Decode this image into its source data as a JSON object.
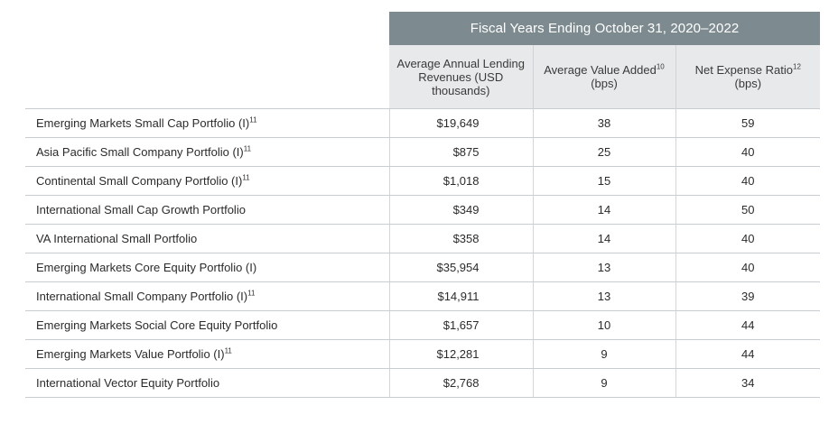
{
  "table": {
    "band_header": "Fiscal Years Ending October 31, 2020–2022",
    "columns": {
      "revenue": "Average Annual Lending Revenues (USD thousands)",
      "value_added": {
        "text": "Average Value Added",
        "sup": "10",
        "unit": " (bps)"
      },
      "expense": {
        "text": "Net Expense Ratio",
        "sup": "12",
        "unit": " (bps)"
      }
    },
    "rows": [
      {
        "name": "Emerging Markets Small Cap Portfolio (I)",
        "sup": "11",
        "revenue": "$19,649",
        "value_added": "38",
        "expense": "59"
      },
      {
        "name": "Asia Pacific Small Company Portfolio (I)",
        "sup": "11",
        "revenue": "$875",
        "value_added": "25",
        "expense": "40"
      },
      {
        "name": "Continental Small Company Portfolio (I)",
        "sup": "11",
        "revenue": "$1,018",
        "value_added": "15",
        "expense": "40"
      },
      {
        "name": "International Small Cap Growth Portfolio",
        "sup": "",
        "revenue": "$349",
        "value_added": "14",
        "expense": "50"
      },
      {
        "name": "VA International Small Portfolio",
        "sup": "",
        "revenue": "$358",
        "value_added": "14",
        "expense": "40"
      },
      {
        "name": "Emerging Markets Core Equity Portfolio (I)",
        "sup": "",
        "revenue": "$35,954",
        "value_added": "13",
        "expense": "40"
      },
      {
        "name": "International Small Company Portfolio (I)",
        "sup": "11",
        "revenue": "$14,911",
        "value_added": "13",
        "expense": "39"
      },
      {
        "name": "Emerging Markets Social Core Equity Portfolio",
        "sup": "",
        "revenue": "$1,657",
        "value_added": "10",
        "expense": "44"
      },
      {
        "name": "Emerging Markets Value Portfolio (I)",
        "sup": "11",
        "revenue": "$12,281",
        "value_added": "9",
        "expense": "44"
      },
      {
        "name": "International Vector Equity Portfolio",
        "sup": "",
        "revenue": "$2,768",
        "value_added": "9",
        "expense": "34"
      }
    ]
  }
}
